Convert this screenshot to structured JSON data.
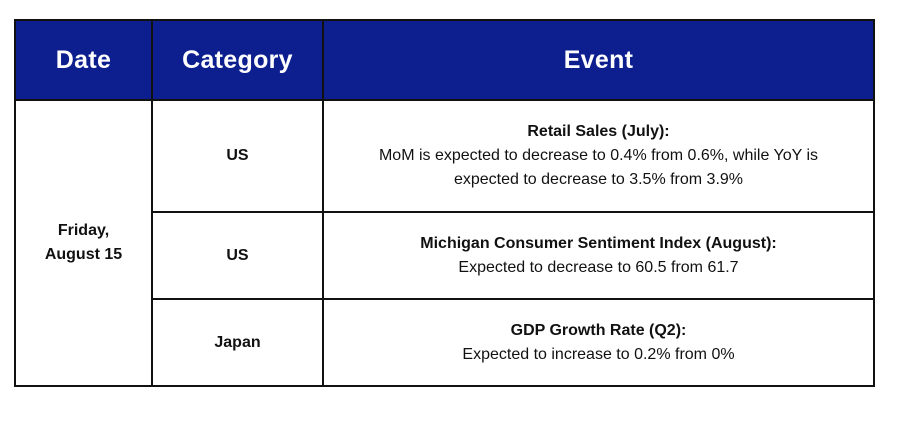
{
  "headers": {
    "date": "Date",
    "category": "Category",
    "event": "Event"
  },
  "date": {
    "line1": "Friday,",
    "line2": "August 15"
  },
  "rows": [
    {
      "category": "US",
      "event_title": "Retail Sales (July):",
      "event_desc": "MoM is expected to decrease to 0.4% from 0.6%, while YoY is expected to decrease to 3.5% from 3.9%"
    },
    {
      "category": "US",
      "event_title": "Michigan Consumer Sentiment Index (August):",
      "event_desc": "Expected to decrease to 60.5 from 61.7"
    },
    {
      "category": "Japan",
      "event_title": "GDP Growth Rate (Q2):",
      "event_desc": "Expected to increase to 0.2% from 0%"
    }
  ],
  "colors": {
    "header_bg": "#0d1f8f",
    "header_text": "#ffffff",
    "border": "#111111"
  }
}
